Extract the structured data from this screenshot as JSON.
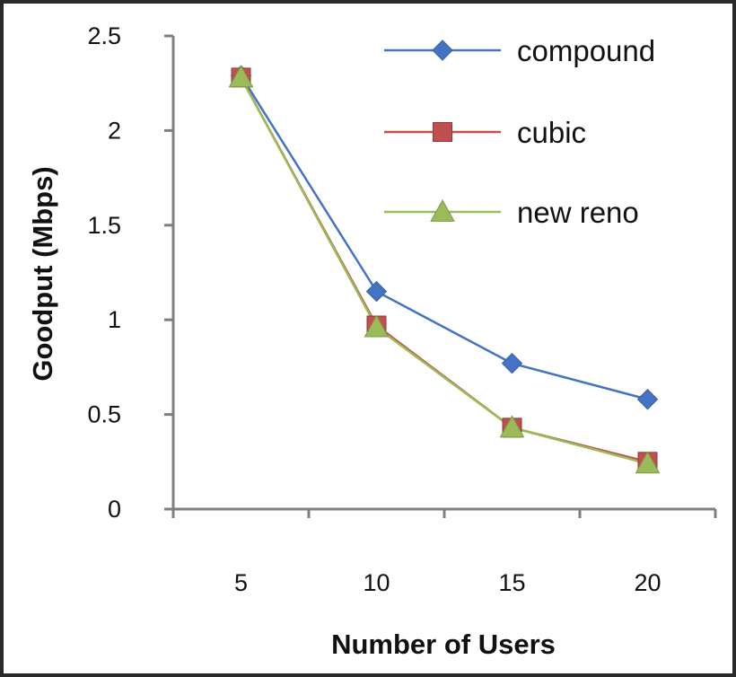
{
  "chart_data": {
    "type": "line",
    "title": "",
    "xlabel": "Number of Users",
    "ylabel": "Goodput (Mbps)",
    "categories": [
      "5",
      "10",
      "15",
      "20"
    ],
    "ylim": [
      0,
      2.5
    ],
    "yticks": [
      "0",
      "0.5",
      "1",
      "1.5",
      "2",
      "2.5"
    ],
    "grid": false,
    "legend_position": "top-right",
    "series": [
      {
        "name": "compound",
        "color": "#4472C4",
        "marker": "diamond",
        "values": [
          2.29,
          1.15,
          0.77,
          0.58
        ]
      },
      {
        "name": "cubic",
        "color": "#C0504D",
        "marker": "square",
        "values": [
          2.28,
          0.97,
          0.43,
          0.25
        ]
      },
      {
        "name": "new reno",
        "color": "#9BBB59",
        "marker": "triangle",
        "values": [
          2.28,
          0.96,
          0.43,
          0.24
        ]
      }
    ]
  }
}
